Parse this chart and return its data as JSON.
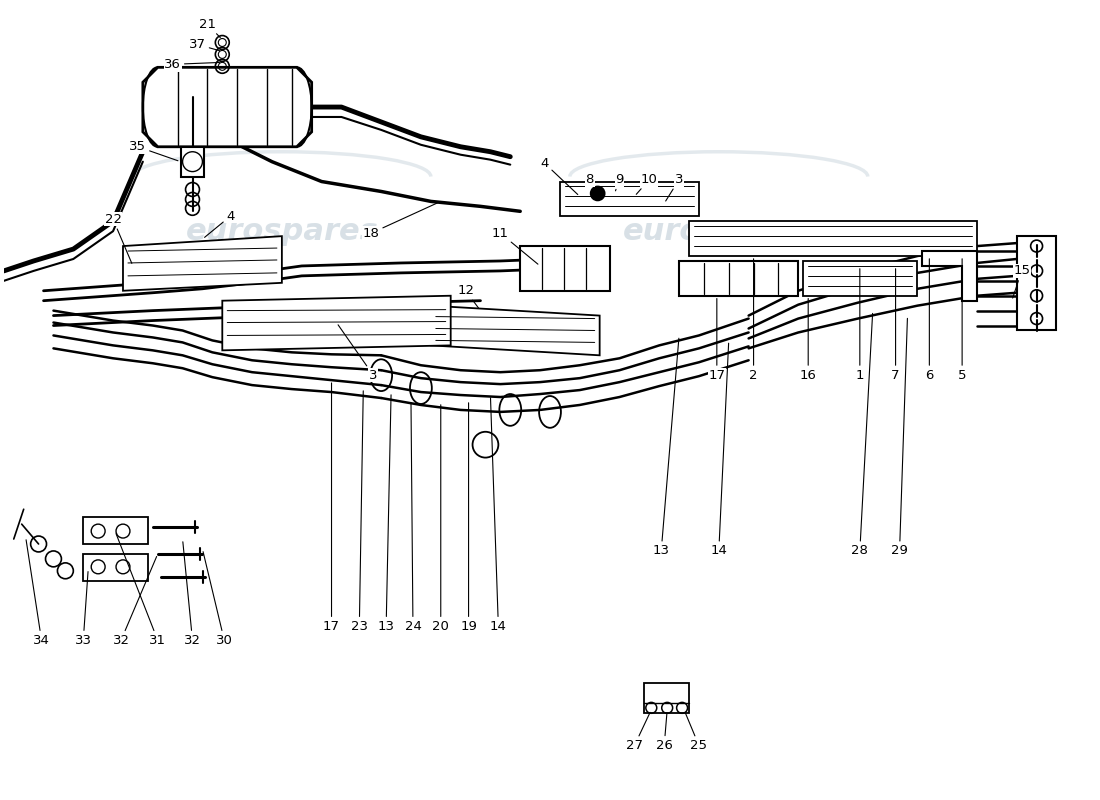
{
  "title": "",
  "background_color": "#ffffff",
  "watermark_color": "#c8d4dc",
  "line_color": "#000000",
  "label_color": "#000000",
  "figsize": [
    11.0,
    8.0
  ],
  "dpi": 100
}
